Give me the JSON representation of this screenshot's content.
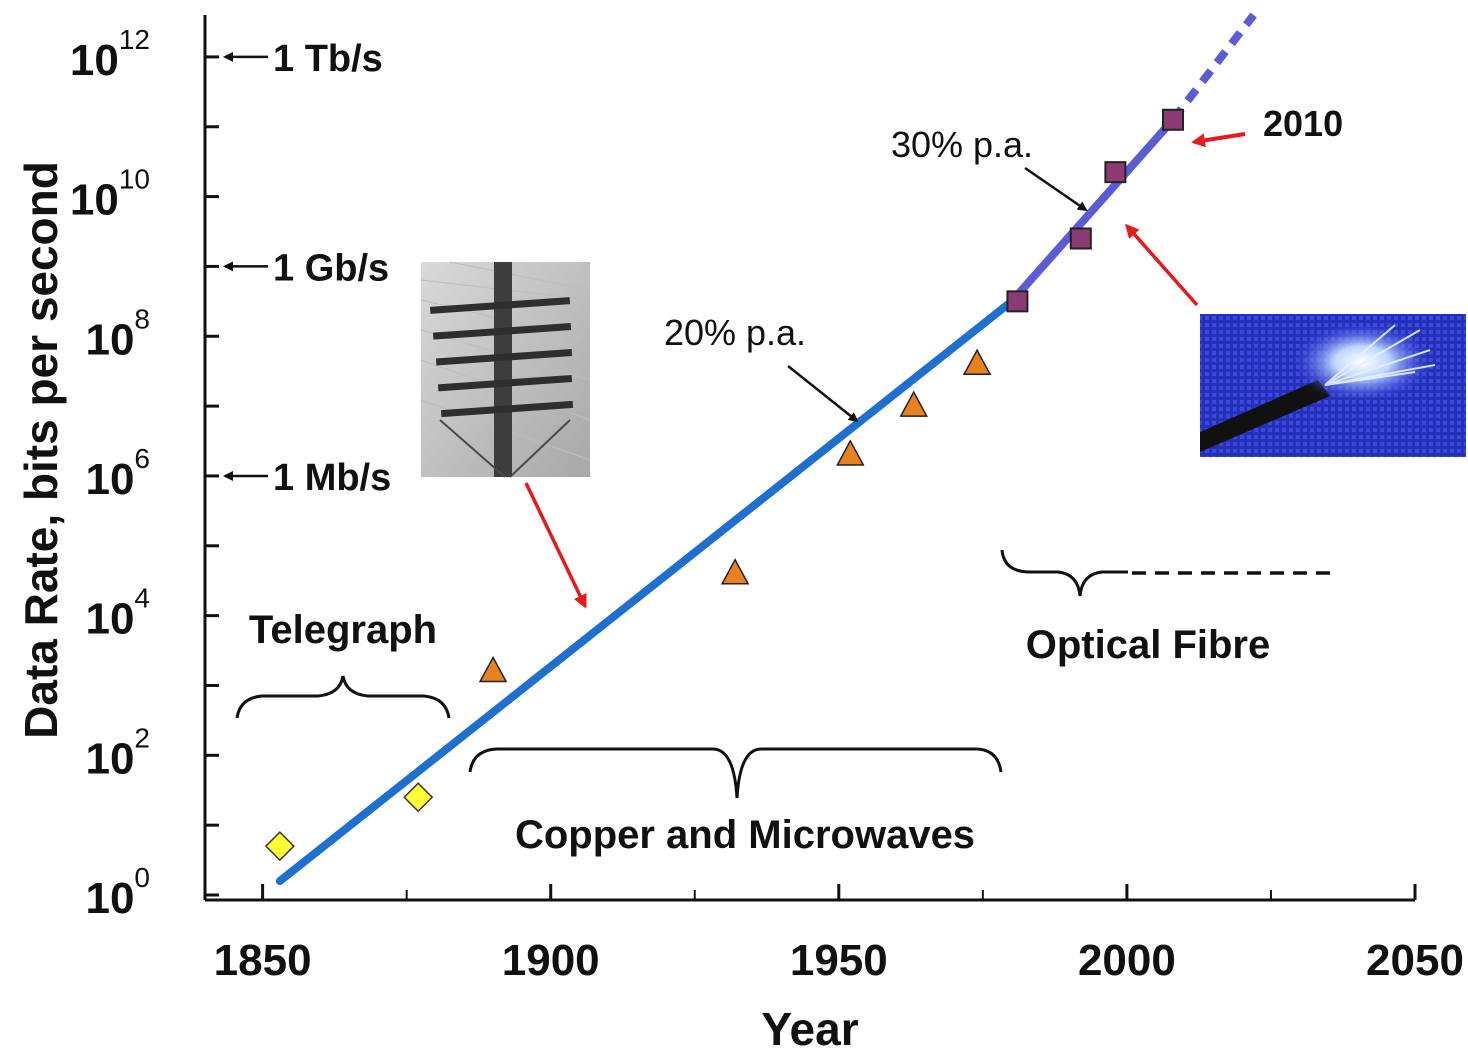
{
  "chart_data": {
    "type": "scatter",
    "xlabel": "Year",
    "ylabel": "Data Rate, bits per second",
    "xlim": [
      1840,
      2050
    ],
    "ylim": [
      0,
      12.6
    ],
    "y_scale": "log10",
    "x_ticks": [
      "1850",
      "1900",
      "1950",
      "2000",
      "2050"
    ],
    "y_ticks": [
      {
        "base": "10",
        "exp": "0",
        "value": 0
      },
      {
        "base": "10",
        "exp": "2",
        "value": 2
      },
      {
        "base": "10",
        "exp": "4",
        "value": 4
      },
      {
        "base": "10",
        "exp": "6",
        "value": 6
      },
      {
        "base": "10",
        "exp": "8",
        "value": 8
      },
      {
        "base": "10",
        "exp": "10",
        "value": 10
      },
      {
        "base": "10",
        "exp": "12",
        "value": 12
      }
    ],
    "rate_markers": [
      {
        "label": "1 Tb/s",
        "value": 12
      },
      {
        "label": "1 Gb/s",
        "value": 9
      },
      {
        "label": "1 Mb/s",
        "value": 6
      }
    ],
    "series": [
      {
        "marker": "diamond",
        "color": "#ffff33",
        "points": [
          {
            "x": 1853,
            "y": 0.7
          },
          {
            "x": 1877,
            "y": 1.4
          }
        ]
      },
      {
        "marker": "triangle",
        "color": "#e8821e",
        "points": [
          {
            "x": 1890,
            "y": 3.2
          },
          {
            "x": 1932,
            "y": 4.6
          },
          {
            "x": 1952,
            "y": 6.3
          },
          {
            "x": 1963,
            "y": 7.0
          },
          {
            "x": 1974,
            "y": 7.6
          }
        ]
      },
      {
        "marker": "square",
        "color": "#8b3a73",
        "points": [
          {
            "x": 1981,
            "y": 8.5
          },
          {
            "x": 1992,
            "y": 9.4
          },
          {
            "x": 1998,
            "y": 10.35
          },
          {
            "x": 2008,
            "y": 11.1
          }
        ]
      }
    ],
    "trends": [
      {
        "label": "20% p.a.",
        "color": "#1f6fd0",
        "from": {
          "x": 1853,
          "y": 0.2
        },
        "to": {
          "x": 1980,
          "y": 8.5
        }
      },
      {
        "label": "30% p.a.",
        "color": "#5b5bd6",
        "from": {
          "x": 1980,
          "y": 8.5
        },
        "to": {
          "x": 2008,
          "y": 11.1
        }
      },
      {
        "label": "",
        "color": "#5b5bd6",
        "dashed": true,
        "from": {
          "x": 2008,
          "y": 11.1
        },
        "to": {
          "x": 2022,
          "y": 12.6
        }
      }
    ],
    "eras": [
      {
        "label": "Telegraph",
        "from": 1845,
        "to": 1882
      },
      {
        "label": "Copper and Microwaves",
        "from": 1887,
        "to": 1980
      },
      {
        "label": "Optical Fibre",
        "from": 1980,
        "to": 2000
      }
    ],
    "annotations": {
      "year_callout": "2010"
    },
    "images": [
      {
        "name": "telegraph-pole-photo"
      },
      {
        "name": "optical-fibre-photo"
      }
    ]
  }
}
